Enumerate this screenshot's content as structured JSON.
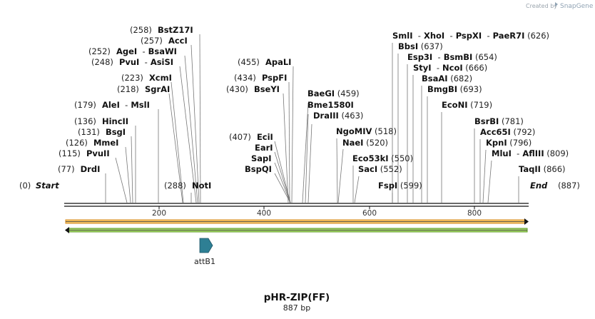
{
  "credit": {
    "created_by": "Created by",
    "logo_text": "SnapGene"
  },
  "plasmid": {
    "name": "pHR-ZIP(FF)",
    "length_label": "887 bp"
  },
  "feature": {
    "name": "attB1",
    "color": "#2e7f94"
  },
  "ends": {
    "start": {
      "pos": "(0)",
      "label": "Start"
    },
    "end": {
      "pos": "(887)",
      "label": "End"
    }
  },
  "ticks": [
    "200",
    "400",
    "600",
    "800"
  ],
  "colors": {
    "orf_top": "#e8a23a",
    "orf_bottom": "#6aaa2e",
    "backbone": "#111111"
  },
  "sites": [
    {
      "row": 0,
      "parts": [
        {
          "t": "(258)",
          "k": "pos"
        },
        {
          "t": "BstZ17I",
          "k": "name"
        }
      ]
    },
    {
      "row": 1,
      "parts": [
        {
          "t": "(257)",
          "k": "pos"
        },
        {
          "t": "AccI",
          "k": "name"
        }
      ]
    },
    {
      "row": 2,
      "parts": [
        {
          "t": "(252)",
          "k": "pos"
        },
        {
          "t": "AgeI",
          "k": "name"
        },
        {
          "t": "-",
          "k": "sep"
        },
        {
          "t": "BsaWI",
          "k": "name"
        }
      ]
    },
    {
      "row": 3,
      "parts": [
        {
          "t": "(248)",
          "k": "pos"
        },
        {
          "t": "PvuI",
          "k": "name"
        },
        {
          "t": "-",
          "k": "sep"
        },
        {
          "t": "AsiSI",
          "k": "name"
        }
      ]
    },
    {
      "row": 4,
      "parts": [
        {
          "t": "(223)",
          "k": "pos"
        },
        {
          "t": "XcmI",
          "k": "name"
        }
      ]
    },
    {
      "row": 5,
      "parts": [
        {
          "t": "(218)",
          "k": "pos"
        },
        {
          "t": "SgrAI",
          "k": "name"
        }
      ]
    },
    {
      "row": 6,
      "parts": [
        {
          "t": "(179)",
          "k": "pos"
        },
        {
          "t": "AleI",
          "k": "name"
        },
        {
          "t": "-",
          "k": "sep"
        },
        {
          "t": "MslI",
          "k": "name"
        }
      ]
    },
    {
      "row": 7,
      "parts": [
        {
          "t": "(136)",
          "k": "pos"
        },
        {
          "t": "HincII",
          "k": "name"
        }
      ]
    },
    {
      "row": 8,
      "parts": [
        {
          "t": "(131)",
          "k": "pos"
        },
        {
          "t": "BsgI",
          "k": "name"
        }
      ]
    },
    {
      "row": 9,
      "parts": [
        {
          "t": "(126)",
          "k": "pos"
        },
        {
          "t": "MmeI",
          "k": "name"
        }
      ]
    },
    {
      "row": 10,
      "parts": [
        {
          "t": "(115)",
          "k": "pos"
        },
        {
          "t": "PvuII",
          "k": "name"
        }
      ]
    },
    {
      "row": 11,
      "parts": [
        {
          "t": "(77)",
          "k": "pos"
        },
        {
          "t": "DrdI",
          "k": "name"
        }
      ]
    },
    {
      "row": 12,
      "parts": [
        {
          "t": "(288)",
          "k": "pos"
        },
        {
          "t": "NotI",
          "k": "name"
        }
      ]
    },
    {
      "row": 13,
      "parts": [
        {
          "t": "(455)",
          "k": "pos"
        },
        {
          "t": "ApaLI",
          "k": "name"
        }
      ]
    },
    {
      "row": 14,
      "parts": [
        {
          "t": "(434)",
          "k": "pos"
        },
        {
          "t": "PspFI",
          "k": "name"
        }
      ]
    },
    {
      "row": 15,
      "parts": [
        {
          "t": "(430)",
          "k": "pos"
        },
        {
          "t": "BseYI",
          "k": "name"
        }
      ]
    },
    {
      "row": 16,
      "parts": [
        {
          "t": "(407)",
          "k": "pos"
        },
        {
          "t": "EciI",
          "k": "name"
        }
      ]
    },
    {
      "row": 17,
      "parts": [
        {
          "t": "EarI",
          "k": "name"
        }
      ]
    },
    {
      "row": 18,
      "parts": [
        {
          "t": "SapI",
          "k": "name"
        }
      ]
    },
    {
      "row": 19,
      "parts": [
        {
          "t": "BspQI",
          "k": "name"
        }
      ]
    },
    {
      "row": 20,
      "parts": [
        {
          "t": "BaeGI",
          "k": "name"
        },
        {
          "t": "(459)",
          "k": "pos"
        }
      ]
    },
    {
      "row": 21,
      "parts": [
        {
          "t": "Bme1580I",
          "k": "name"
        }
      ]
    },
    {
      "row": 22,
      "parts": [
        {
          "t": "DraIII",
          "k": "name"
        },
        {
          "t": "(463)",
          "k": "pos"
        }
      ]
    },
    {
      "row": 23,
      "parts": [
        {
          "t": "NgoMIV",
          "k": "name"
        },
        {
          "t": "(518)",
          "k": "pos"
        }
      ]
    },
    {
      "row": 24,
      "parts": [
        {
          "t": "NaeI",
          "k": "name"
        },
        {
          "t": "(520)",
          "k": "pos"
        }
      ]
    },
    {
      "row": 25,
      "parts": [
        {
          "t": "Eco53kI",
          "k": "name"
        },
        {
          "t": "(550)",
          "k": "pos"
        }
      ]
    },
    {
      "row": 26,
      "parts": [
        {
          "t": "SacI",
          "k": "name"
        },
        {
          "t": "(552)",
          "k": "pos"
        }
      ]
    },
    {
      "row": 27,
      "parts": [
        {
          "t": "FspI",
          "k": "name"
        },
        {
          "t": "(599)",
          "k": "pos"
        }
      ]
    },
    {
      "row": 28,
      "parts": [
        {
          "t": "SmlI",
          "k": "name"
        },
        {
          "t": "-",
          "k": "sep"
        },
        {
          "t": "XhoI",
          "k": "name"
        },
        {
          "t": "-",
          "k": "sep"
        },
        {
          "t": "PspXI",
          "k": "name"
        },
        {
          "t": "-",
          "k": "sep"
        },
        {
          "t": "PaeR7I",
          "k": "name"
        },
        {
          "t": "(626)",
          "k": "pos"
        }
      ]
    },
    {
      "row": 29,
      "parts": [
        {
          "t": "BbsI",
          "k": "name"
        },
        {
          "t": "(637)",
          "k": "pos"
        }
      ]
    },
    {
      "row": 30,
      "parts": [
        {
          "t": "Esp3I",
          "k": "name"
        },
        {
          "t": "-",
          "k": "sep"
        },
        {
          "t": "BsmBI",
          "k": "name"
        },
        {
          "t": "(654)",
          "k": "pos"
        }
      ]
    },
    {
      "row": 31,
      "parts": [
        {
          "t": "StyI",
          "k": "name"
        },
        {
          "t": "-",
          "k": "sep"
        },
        {
          "t": "NcoI",
          "k": "name"
        },
        {
          "t": "(666)",
          "k": "pos"
        }
      ]
    },
    {
      "row": 32,
      "parts": [
        {
          "t": "BsaAI",
          "k": "name"
        },
        {
          "t": "(682)",
          "k": "pos"
        }
      ]
    },
    {
      "row": 33,
      "parts": [
        {
          "t": "BmgBI",
          "k": "name"
        },
        {
          "t": "(693)",
          "k": "pos"
        }
      ]
    },
    {
      "row": 34,
      "parts": [
        {
          "t": "EcoNI",
          "k": "name"
        },
        {
          "t": "(719)",
          "k": "pos"
        }
      ]
    },
    {
      "row": 35,
      "parts": [
        {
          "t": "BsrBI",
          "k": "name"
        },
        {
          "t": "(781)",
          "k": "pos"
        }
      ]
    },
    {
      "row": 36,
      "parts": [
        {
          "t": "Acc65I",
          "k": "name"
        },
        {
          "t": "(792)",
          "k": "pos"
        }
      ]
    },
    {
      "row": 37,
      "parts": [
        {
          "t": "KpnI",
          "k": "name"
        },
        {
          "t": "(796)",
          "k": "pos"
        }
      ]
    },
    {
      "row": 38,
      "parts": [
        {
          "t": "MluI",
          "k": "name"
        },
        {
          "t": "-",
          "k": "sep"
        },
        {
          "t": "AflIII",
          "k": "name"
        },
        {
          "t": "(809)",
          "k": "pos"
        }
      ]
    },
    {
      "row": 39,
      "parts": [
        {
          "t": "TaqII",
          "k": "name"
        },
        {
          "t": "(866)",
          "k": "pos"
        }
      ]
    }
  ]
}
